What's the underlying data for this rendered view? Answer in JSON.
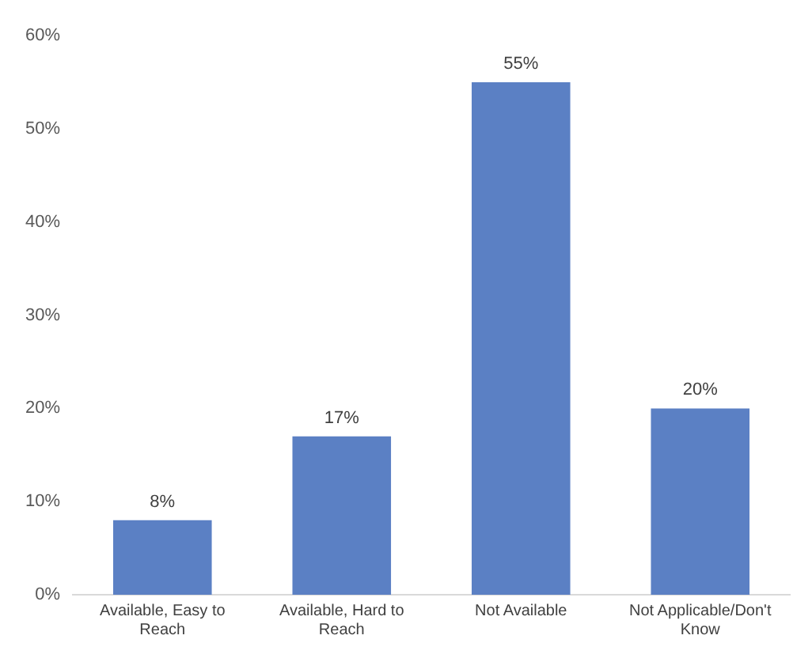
{
  "chart_data": {
    "type": "bar",
    "categories": [
      "Available, Easy to Reach",
      "Available, Hard to Reach",
      "Not Available",
      "Not Applicable/Don't Know"
    ],
    "values": [
      8,
      17,
      55,
      20
    ],
    "value_labels": [
      "8%",
      "17%",
      "55%",
      "20%"
    ],
    "color": "#5b80c4",
    "ylim": [
      0,
      60
    ],
    "yticks": [
      {
        "value": 0,
        "label": "0%"
      },
      {
        "value": 10,
        "label": "10%"
      },
      {
        "value": 20,
        "label": "20%"
      },
      {
        "value": 30,
        "label": "30%"
      },
      {
        "value": 40,
        "label": "40%"
      },
      {
        "value": 50,
        "label": "50%"
      },
      {
        "value": 60,
        "label": "60%"
      }
    ],
    "grid": false,
    "legend": false
  }
}
